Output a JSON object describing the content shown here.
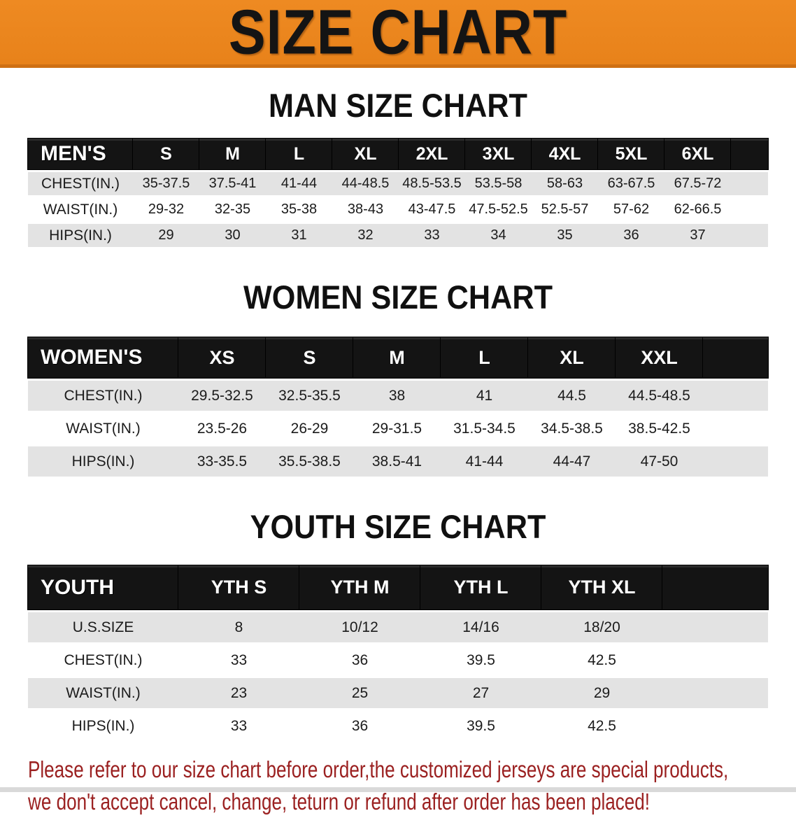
{
  "banner": {
    "title": "SIZE CHART",
    "bg_color": "#E8821C",
    "text_color": "#141414"
  },
  "sections": [
    {
      "heading": "MAN SIZE CHART",
      "header_label": "MEN'S",
      "columns": [
        "S",
        "M",
        "L",
        "XL",
        "2XL",
        "3XL",
        "4XL",
        "5XL",
        "6XL"
      ],
      "rows": [
        {
          "label": "CHEST(IN.)",
          "values": [
            "35-37.5",
            "37.5-41",
            "41-44",
            "44-48.5",
            "48.5-53.5",
            "53.5-58",
            "58-63",
            "63-67.5",
            "67.5-72"
          ]
        },
        {
          "label": "WAIST(IN.)",
          "values": [
            "29-32",
            "32-35",
            "35-38",
            "38-43",
            "43-47.5",
            "47.5-52.5",
            "52.5-57",
            "57-62",
            "62-66.5"
          ]
        },
        {
          "label": "HIPS(IN.)",
          "values": [
            "29",
            "30",
            "31",
            "32",
            "33",
            "34",
            "35",
            "36",
            "37"
          ]
        }
      ]
    },
    {
      "heading": "WOMEN SIZE CHART",
      "header_label": "WOMEN'S",
      "columns": [
        "XS",
        "S",
        "M",
        "L",
        "XL",
        "XXL"
      ],
      "rows": [
        {
          "label": "CHEST(IN.)",
          "values": [
            "29.5-32.5",
            "32.5-35.5",
            "38",
            "41",
            "44.5",
            "44.5-48.5"
          ]
        },
        {
          "label": "WAIST(IN.)",
          "values": [
            "23.5-26",
            "26-29",
            "29-31.5",
            "31.5-34.5",
            "34.5-38.5",
            "38.5-42.5"
          ]
        },
        {
          "label": "HIPS(IN.)",
          "values": [
            "33-35.5",
            "35.5-38.5",
            "38.5-41",
            "41-44",
            "44-47",
            "47-50"
          ]
        }
      ]
    },
    {
      "heading": "YOUTH SIZE CHART",
      "header_label": "YOUTH",
      "columns": [
        "YTH S",
        "YTH M",
        "YTH L",
        "YTH XL"
      ],
      "rows": [
        {
          "label": "U.S.SIZE",
          "values": [
            "8",
            "10/12",
            "14/16",
            "18/20"
          ]
        },
        {
          "label": "CHEST(IN.)",
          "values": [
            "33",
            "36",
            "39.5",
            "42.5"
          ]
        },
        {
          "label": "WAIST(IN.)",
          "values": [
            "23",
            "25",
            "27",
            "29"
          ]
        },
        {
          "label": "HIPS(IN.)",
          "values": [
            "33",
            "36",
            "39.5",
            "42.5"
          ]
        }
      ]
    }
  ],
  "disclaimer": {
    "line1": "Please refer to our size chart before order,the customized jerseys are special products,",
    "line2": "we don't accept cancel, change, teturn or refund after order has been placed!",
    "color": "#9b2121"
  },
  "colors": {
    "banner_orange": "#E8821C",
    "header_bar_black": "#141414",
    "row_gray": "#e3e3e3",
    "row_white": "#ffffff",
    "disclaimer_red": "#9b2121"
  }
}
